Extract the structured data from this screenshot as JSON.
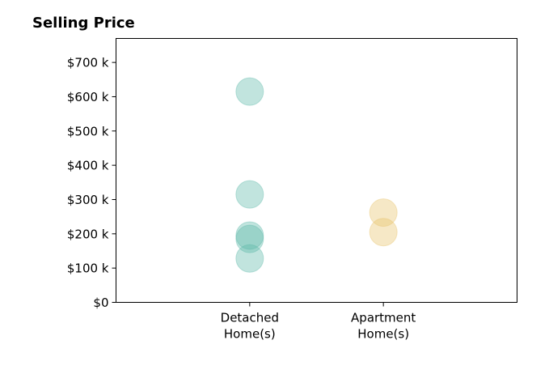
{
  "chart_data": {
    "type": "scatter",
    "title": "Selling Price",
    "xlabel": "",
    "ylabel": "",
    "categories": [
      [
        "Detached",
        "Home(s)"
      ],
      [
        "Apartment",
        "Home(s)"
      ]
    ],
    "xlim": [
      0,
      3
    ],
    "ylim": [
      0,
      770000
    ],
    "yticks": [
      0,
      100000,
      200000,
      300000,
      400000,
      500000,
      600000,
      700000
    ],
    "ytick_labels": [
      "$0",
      "$100 k",
      "$200 k",
      "$300 k",
      "$400 k",
      "$500 k",
      "$600 k",
      "$700 k"
    ],
    "grid": false,
    "legend": "none",
    "series": [
      {
        "category_index": 0,
        "color": "#5bb8a8",
        "opacity": 0.38,
        "values": [
          615000,
          315000,
          195000,
          185000,
          128000
        ]
      },
      {
        "category_index": 1,
        "color": "#e8c36a",
        "opacity": 0.38,
        "values": [
          262000,
          205000
        ]
      }
    ]
  }
}
